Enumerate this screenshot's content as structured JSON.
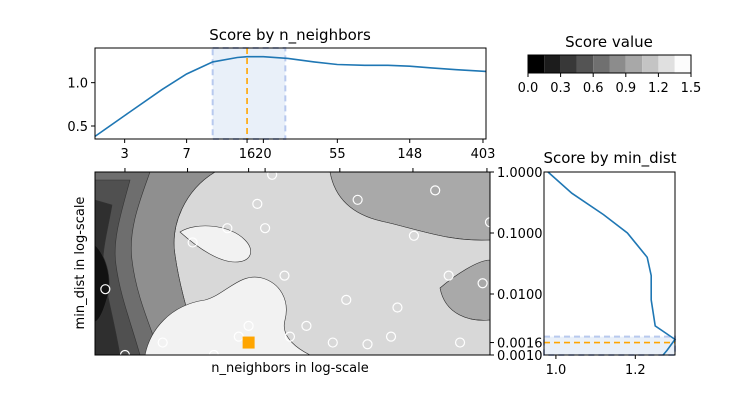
{
  "chart_data": [
    {
      "type": "line",
      "title": "Score by n_neighbors",
      "xscale": "log",
      "x_ticks": [
        3,
        7,
        16,
        20,
        55,
        148,
        403
      ],
      "x_tick_labels": [
        "3",
        "7",
        "16",
        "20",
        "55",
        "148",
        "403"
      ],
      "xlim": [
        2,
        420
      ],
      "ylim": [
        0.35,
        1.4
      ],
      "y_ticks": [
        0.5,
        1.0
      ],
      "y_tick_labels": [
        "0.5",
        "1.0"
      ],
      "series": [
        {
          "x": [
            2,
            3,
            5,
            7,
            10,
            14,
            16,
            20,
            28,
            40,
            55,
            80,
            110,
            148,
            200,
            280,
            420
          ],
          "y": [
            0.38,
            0.62,
            0.92,
            1.1,
            1.24,
            1.29,
            1.3,
            1.3,
            1.28,
            1.24,
            1.21,
            1.2,
            1.2,
            1.19,
            1.17,
            1.15,
            1.13
          ],
          "color": "#1f77b4"
        }
      ],
      "best_x": 16,
      "band_x": [
        10,
        27
      ]
    },
    {
      "type": "heatmap",
      "xlabel": "n_neighbors in log-scale",
      "ylabel": "min_dist in log-scale",
      "xscale": "log",
      "yscale": "log",
      "xlim": [
        2,
        420
      ],
      "ylim": [
        0.001,
        1.0
      ],
      "y_ticks": [
        1.0,
        0.1,
        0.01,
        0.0016,
        0.001
      ],
      "y_tick_labels": [
        "1.0000",
        "0.1000",
        "0.0100",
        "0.0016",
        "0.0010"
      ],
      "samples": [
        [
          2.3,
          0.012
        ],
        [
          3,
          0.001
        ],
        [
          5,
          0.0016
        ],
        [
          7.5,
          0.07
        ],
        [
          10,
          0.001
        ],
        [
          16,
          0.003
        ],
        [
          20,
          0.12
        ],
        [
          12,
          0.12
        ],
        [
          14,
          0.002
        ],
        [
          18,
          0.3
        ],
        [
          22,
          0.9
        ],
        [
          28,
          0.002
        ],
        [
          26,
          0.02
        ],
        [
          35,
          0.003
        ],
        [
          50,
          0.0016
        ],
        [
          70,
          0.35
        ],
        [
          80,
          0.0015
        ],
        [
          110,
          0.002
        ],
        [
          120,
          0.006
        ],
        [
          150,
          0.09
        ],
        [
          200,
          0.5
        ],
        [
          240,
          0.02
        ],
        [
          280,
          0.0016
        ],
        [
          380,
          0.015
        ],
        [
          420,
          0.15
        ],
        [
          60,
          0.008
        ]
      ],
      "best": [
        16,
        0.0016
      ],
      "best_color": "#ffa500"
    },
    {
      "type": "colorbar",
      "title": "Score value",
      "levels": [
        0.0,
        0.15,
        0.3,
        0.45,
        0.6,
        0.75,
        0.9,
        1.05,
        1.2,
        1.35,
        1.5
      ],
      "tick_labels": [
        "0.0",
        "0.3",
        "0.6",
        "0.9",
        "1.2",
        "1.5"
      ],
      "colors": [
        "#000000",
        "#1c1c1c",
        "#383838",
        "#545454",
        "#707070",
        "#8c8c8c",
        "#a8a8a8",
        "#c4c4c4",
        "#e0e0e0",
        "#fcfcfc"
      ]
    },
    {
      "type": "line",
      "title": "Score by min_dist",
      "yscale": "log",
      "xlim": [
        0.97,
        1.3
      ],
      "ylim": [
        0.001,
        1.0
      ],
      "x_ticks": [
        1.0,
        1.2
      ],
      "x_tick_labels": [
        "1.0",
        "1.2"
      ],
      "series": [
        {
          "y": [
            1.0,
            0.45,
            0.2,
            0.1,
            0.04,
            0.02,
            0.008,
            0.003,
            0.0018,
            0.0012,
            0.001
          ],
          "x": [
            0.98,
            1.04,
            1.12,
            1.18,
            1.23,
            1.24,
            1.24,
            1.25,
            1.3,
            1.28,
            1.27
          ],
          "color": "#1f77b4"
        }
      ],
      "best_y": 0.0016,
      "band_y": [
        0.001,
        0.002
      ]
    }
  ]
}
